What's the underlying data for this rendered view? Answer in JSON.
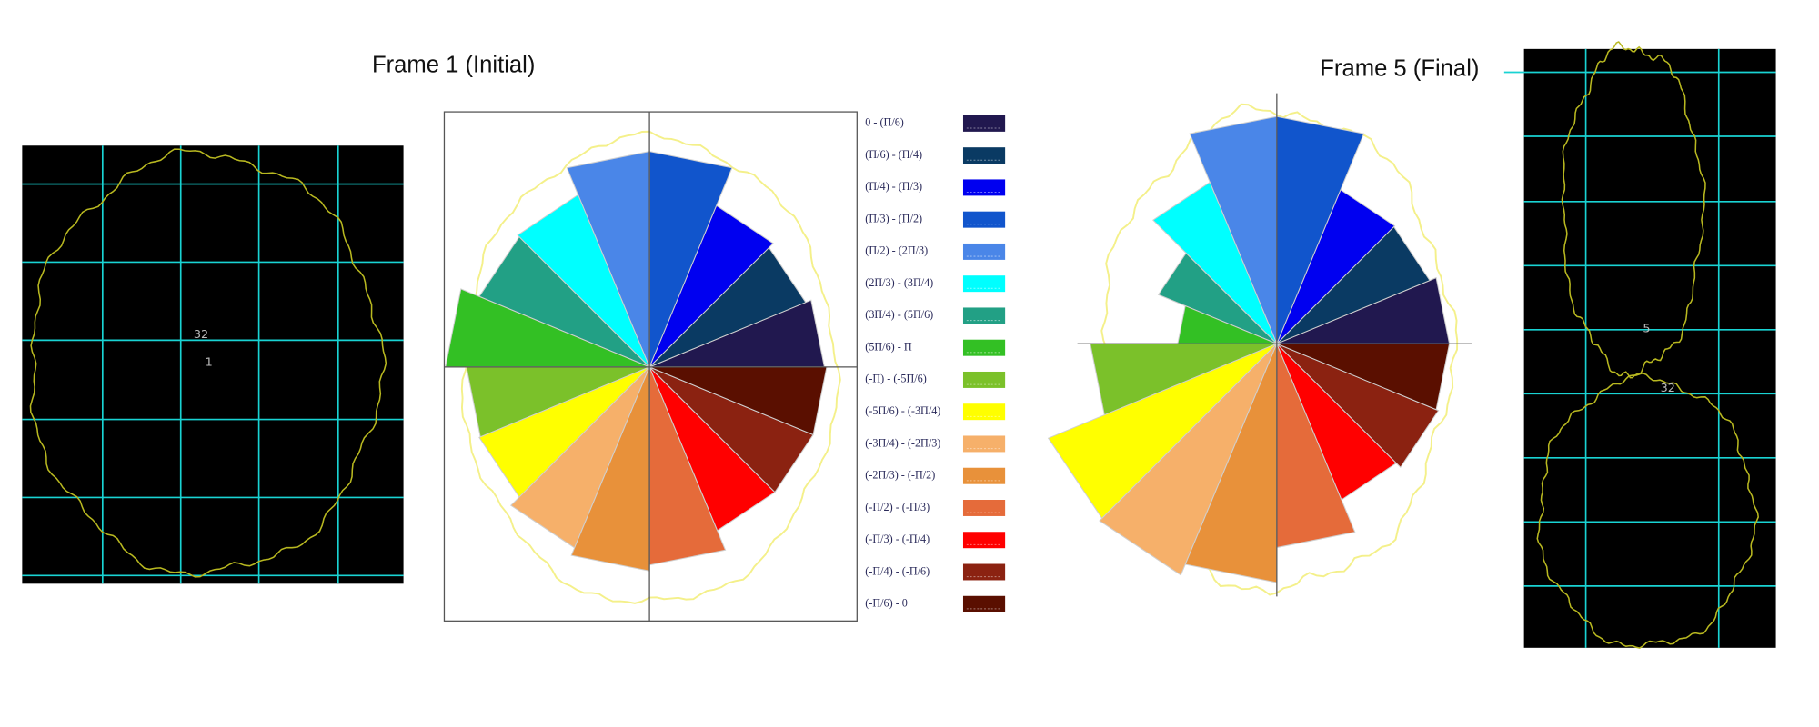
{
  "chart_data": [
    {
      "type": "rose",
      "title": "Frame 1 (Initial)",
      "values": [
        150,
        145,
        150,
        185,
        185,
        160,
        158,
        175,
        157,
        158,
        168,
        175,
        170,
        152,
        152,
        152
      ]
    },
    {
      "type": "rose",
      "title": "Frame 5 (Final)",
      "values": [
        148,
        142,
        143,
        195,
        195,
        150,
        110,
        85,
        160,
        212,
        215,
        205,
        175,
        145,
        150,
        148
      ]
    }
  ],
  "sectors": {
    "labels": [
      "0 - (Π/6)",
      "(Π/6) - (Π/4)",
      "(Π/4) - (Π/3)",
      "(Π/3) - (Π/2)",
      "(Π/2) - (2Π/3)",
      "(2Π/3) - (3Π/4)",
      "(3Π/4) - (5Π/6)",
      "(5Π/6) - Π",
      "(-Π) - (-5Π/6)",
      "(-5Π/6) - (-3Π/4)",
      "(-3Π/4) - (-2Π/3)",
      "(-2Π/3) - (-Π/2)",
      "(-Π/2) - (-Π/3)",
      "(-Π/3) - (-Π/4)",
      "(-Π/4) - (-Π/6)",
      "(-Π/6) - 0"
    ],
    "colors": [
      "#21184f",
      "#0a3a63",
      "#0000f0",
      "#1155cc",
      "#4a86e8",
      "#00ffff",
      "#22a085",
      "#33c024",
      "#7bc12a",
      "#ffff00",
      "#f6b06a",
      "#e8913a",
      "#e56b3a",
      "#ff0000",
      "#8b2211",
      "#5a0f00"
    ]
  },
  "cell_images": [
    {
      "labels": [
        "32",
        "1"
      ]
    },
    {
      "labels": [
        "5",
        "32"
      ]
    }
  ]
}
